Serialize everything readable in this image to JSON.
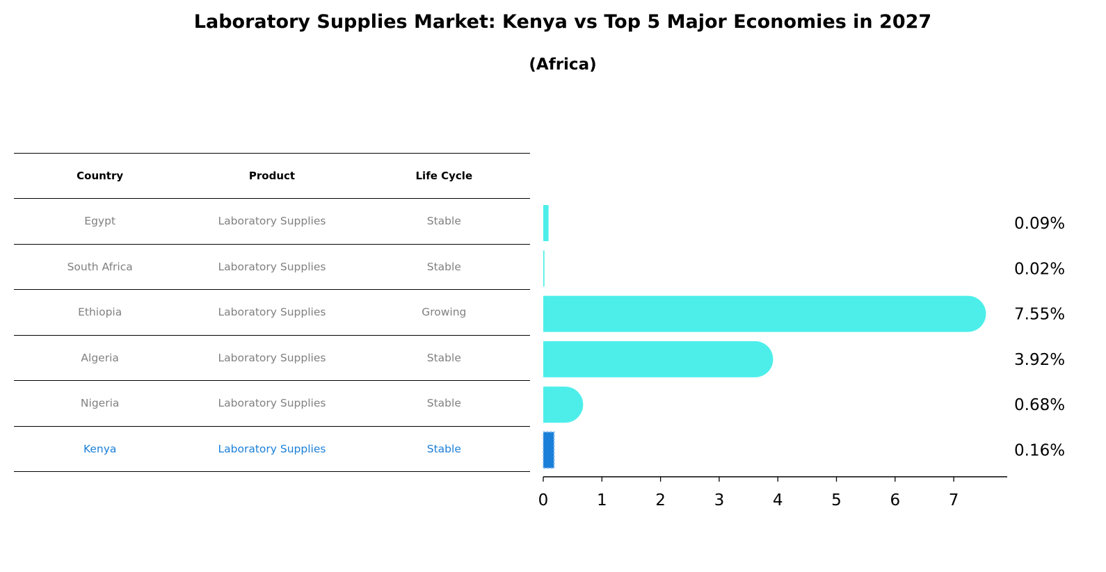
{
  "chart_data": {
    "type": "bar",
    "orientation": "horizontal",
    "title": "Laboratory Supplies Market: Kenya vs Top 5 Major Economies in 2027",
    "subtitle": "(Africa)",
    "table": {
      "columns": [
        "Country",
        "Product",
        "Life Cycle"
      ],
      "rows": [
        {
          "country": "Egypt",
          "product": "Laboratory Supplies",
          "life_cycle": "Stable"
        },
        {
          "country": "South Africa",
          "product": "Laboratory Supplies",
          "life_cycle": "Stable"
        },
        {
          "country": "Ethiopia",
          "product": "Laboratory Supplies",
          "life_cycle": "Growing"
        },
        {
          "country": "Algeria",
          "product": "Laboratory Supplies",
          "life_cycle": "Stable"
        },
        {
          "country": "Nigeria",
          "product": "Laboratory Supplies",
          "life_cycle": "Stable"
        },
        {
          "country": "Kenya",
          "product": "Laboratory Supplies",
          "life_cycle": "Stable"
        }
      ]
    },
    "categories": [
      "Egypt",
      "South Africa",
      "Ethiopia",
      "Algeria",
      "Nigeria",
      "Kenya"
    ],
    "values": [
      0.09,
      0.02,
      7.55,
      3.92,
      0.68,
      0.16
    ],
    "value_labels": [
      "0.09%",
      "0.02%",
      "7.55%",
      "3.92%",
      "0.68%",
      "0.16%"
    ],
    "highlight": "Kenya",
    "xticks": [
      "0",
      "1",
      "2",
      "3",
      "4",
      "5",
      "6",
      "7"
    ],
    "xlim": [
      0,
      7.9
    ],
    "xlabel": "",
    "ylabel": "",
    "grid": false,
    "colors": {
      "bar": "#4deeea",
      "highlight": "#1a7fd8",
      "highlight_text": "#1a7fd8",
      "muted_text": "#808080"
    }
  }
}
